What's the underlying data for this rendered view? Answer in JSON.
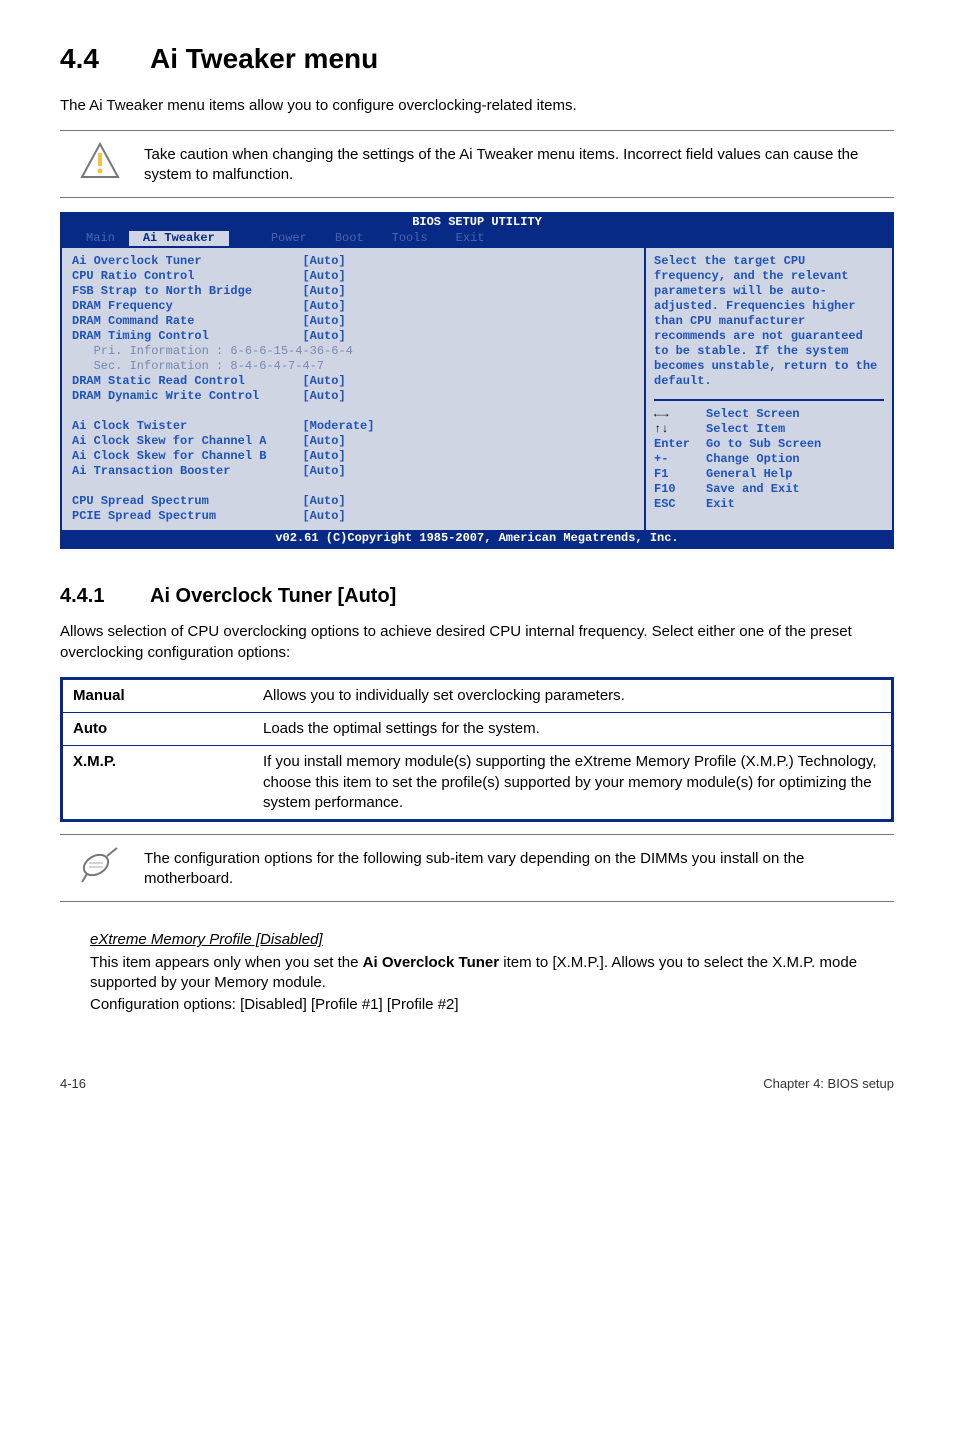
{
  "section": {
    "number": "4.4",
    "title": "Ai Tweaker menu"
  },
  "intro": "The Ai Tweaker menu items allow you to configure overclocking-related items.",
  "caution": "Take caution when changing the settings of the Ai Tweaker menu items. Incorrect field values can cause the system to malfunction.",
  "bios": {
    "title": "BIOS SETUP UTILITY",
    "menus": [
      "Main",
      "Ai Tweaker",
      "",
      "Power",
      "Boot",
      "Tools",
      "Exit"
    ],
    "active_menu_index": 1,
    "left": "Ai Overclock Tuner              [Auto]\nCPU Ratio Control               [Auto]\nFSB Strap to North Bridge       [Auto]\nDRAM Frequency                  [Auto]\nDRAM Command Rate               [Auto]\nDRAM Timing Control             [Auto]\n<span class=\"dim\">   Pri. Information : 6-6-6-15-4-36-6-4</span>\n<span class=\"dim\">   Sec. Information : 8-4-6-4-7-4-7</span>\nDRAM Static Read Control        [Auto]\nDRAM Dynamic Write Control      [Auto]\n\nAi Clock Twister                [Moderate]\nAi Clock Skew for Channel A     [Auto]\nAi Clock Skew for Channel B     [Auto]\nAi Transaction Booster          [Auto]\n\nCPU Spread Spectrum             [Auto]\nPCIE Spread Spectrum            [Auto]",
    "help": "Select the target CPU frequency, and the relevant parameters will be auto-adjusted. Frequencies higher than CPU manufacturer recommends are not guaranteed to be stable. If the system becomes unstable, return to the default.",
    "nav": [
      {
        "k": "←→",
        "v": "Select Screen",
        "black": true
      },
      {
        "k": "↑↓",
        "v": "Select Item",
        "black": true
      },
      {
        "k": "Enter",
        "v": "Go to Sub Screen"
      },
      {
        "k": "+-",
        "v": "Change Option"
      },
      {
        "k": "F1",
        "v": "General Help"
      },
      {
        "k": "F10",
        "v": "Save and Exit"
      },
      {
        "k": "ESC",
        "v": "Exit"
      }
    ],
    "footer": "v02.61 (C)Copyright 1985-2007, American Megatrends, Inc."
  },
  "subsection": {
    "number": "4.4.1",
    "title": "Ai Overclock Tuner [Auto]"
  },
  "subsection_intro": "Allows selection of CPU overclocking options to achieve desired CPU internal frequency. Select either one of the preset overclocking configuration options:",
  "opts": [
    {
      "label": "Manual",
      "desc": "Allows you to individually set overclocking parameters."
    },
    {
      "label": "Auto",
      "desc": "Loads the optimal settings for the system."
    },
    {
      "label": "X.M.P.",
      "desc": "If you install memory module(s) supporting the eXtreme Memory Profile (X.M.P.) Technology, choose this item to set the profile(s) supported by your memory module(s) for optimizing the system performance."
    }
  ],
  "note": "The configuration options for the following sub-item vary depending on the DIMMs you install on the motherboard.",
  "xmp": {
    "heading": "eXtreme Memory Profile [Disabled]",
    "body1": "This item appears only when you set the <b>Ai Overclock Tuner</b> item to [X.M.P.]. Allows you to select the X.M.P. mode supported by your Memory module.",
    "body2": "Configuration options: [Disabled] [Profile #1] [Profile #2]"
  },
  "footer": {
    "left": "4-16",
    "right": "Chapter 4: BIOS setup"
  }
}
